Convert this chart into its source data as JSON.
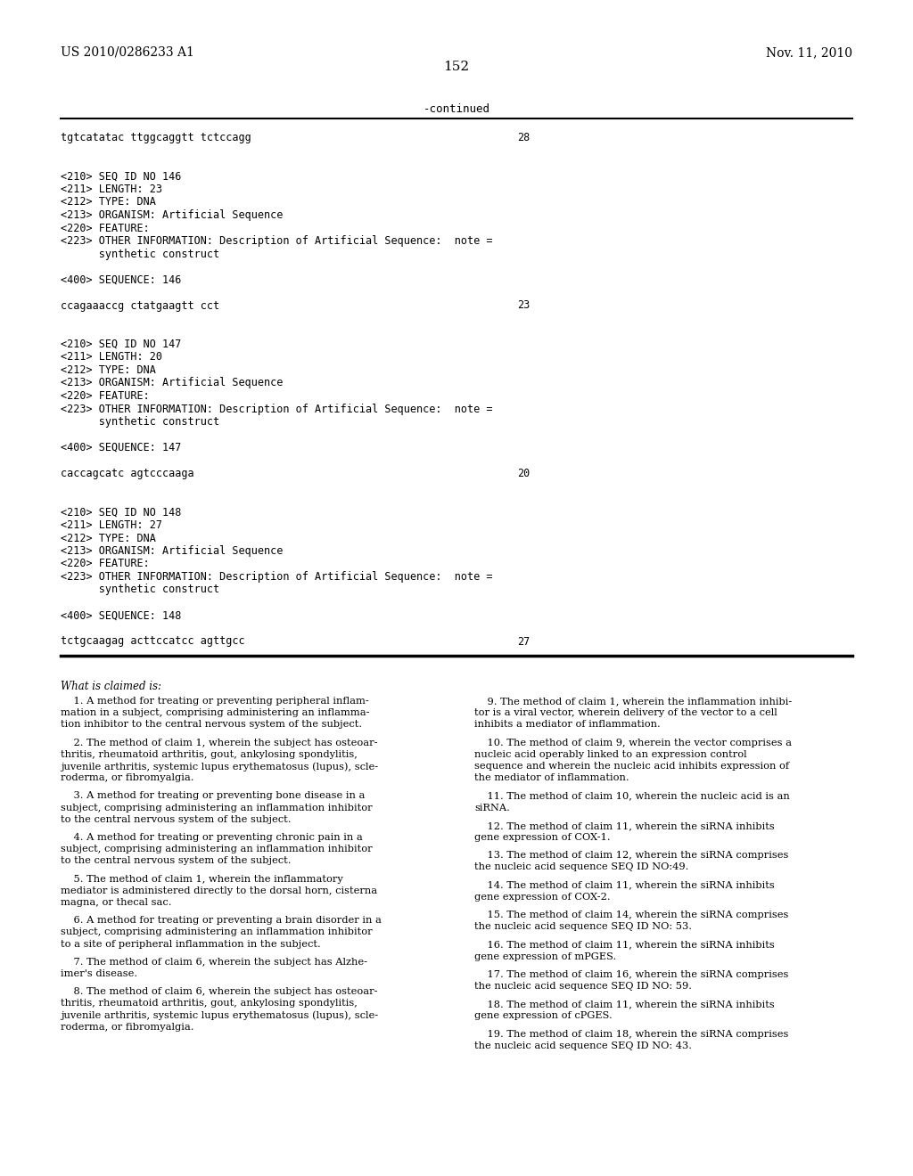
{
  "background_color": "#ffffff",
  "header_left": "US 2010/0286233 A1",
  "header_right": "Nov. 11, 2010",
  "page_number": "152",
  "continued_label": "-continued",
  "monospace_block": [
    {
      "text": "tgtcatatac ttggcaggtt tctccagg",
      "right_num": "28"
    },
    {
      "text": ""
    },
    {
      "text": ""
    },
    {
      "text": "<210> SEQ ID NO 146"
    },
    {
      "text": "<211> LENGTH: 23"
    },
    {
      "text": "<212> TYPE: DNA"
    },
    {
      "text": "<213> ORGANISM: Artificial Sequence"
    },
    {
      "text": "<220> FEATURE:"
    },
    {
      "text": "<223> OTHER INFORMATION: Description of Artificial Sequence:  note ="
    },
    {
      "text": "      synthetic construct"
    },
    {
      "text": ""
    },
    {
      "text": "<400> SEQUENCE: 146"
    },
    {
      "text": ""
    },
    {
      "text": "ccagaaaccg ctatgaagtt cct",
      "right_num": "23"
    },
    {
      "text": ""
    },
    {
      "text": ""
    },
    {
      "text": "<210> SEQ ID NO 147"
    },
    {
      "text": "<211> LENGTH: 20"
    },
    {
      "text": "<212> TYPE: DNA"
    },
    {
      "text": "<213> ORGANISM: Artificial Sequence"
    },
    {
      "text": "<220> FEATURE:"
    },
    {
      "text": "<223> OTHER INFORMATION: Description of Artificial Sequence:  note ="
    },
    {
      "text": "      synthetic construct"
    },
    {
      "text": ""
    },
    {
      "text": "<400> SEQUENCE: 147"
    },
    {
      "text": ""
    },
    {
      "text": "caccagcatc agtcccaaga",
      "right_num": "20"
    },
    {
      "text": ""
    },
    {
      "text": ""
    },
    {
      "text": "<210> SEQ ID NO 148"
    },
    {
      "text": "<211> LENGTH: 27"
    },
    {
      "text": "<212> TYPE: DNA"
    },
    {
      "text": "<213> ORGANISM: Artificial Sequence"
    },
    {
      "text": "<220> FEATURE:"
    },
    {
      "text": "<223> OTHER INFORMATION: Description of Artificial Sequence:  note ="
    },
    {
      "text": "      synthetic construct"
    },
    {
      "text": ""
    },
    {
      "text": "<400> SEQUENCE: 148"
    },
    {
      "text": ""
    },
    {
      "text": "tctgcaagag acttccatcc agttgcc",
      "right_num": "27"
    }
  ],
  "col1_claims": [
    {
      "indent": "    1. ",
      "lines": [
        "A method for treating or preventing peripheral inflam-",
        "mation in a subject, comprising administering an inflamma-",
        "tion inhibitor to the central nervous system of the subject."
      ]
    },
    {
      "indent": "    2. ",
      "lines": [
        "The method of claim 1, wherein the subject has osteoar-",
        "thritis, rheumatoid arthritis, gout, ankylosing spondylitis,",
        "juvenile arthritis, systemic lupus erythematosus (lupus), scle-",
        "roderma, or fibromyalgia."
      ]
    },
    {
      "indent": "    3. ",
      "lines": [
        "A method for treating or preventing bone disease in a",
        "subject, comprising administering an inflammation inhibitor",
        "to the central nervous system of the subject."
      ]
    },
    {
      "indent": "    4. ",
      "lines": [
        "A method for treating or preventing chronic pain in a",
        "subject, comprising administering an inflammation inhibitor",
        "to the central nervous system of the subject."
      ]
    },
    {
      "indent": "    5. ",
      "lines": [
        "The method of claim 1, wherein the inflammatory",
        "mediator is administered directly to the dorsal horn, cisterna",
        "magna, or thecal sac."
      ]
    },
    {
      "indent": "    6. ",
      "lines": [
        "A method for treating or preventing a brain disorder in a",
        "subject, comprising administering an inflammation inhibitor",
        "to a site of peripheral inflammation in the subject."
      ]
    },
    {
      "indent": "    7. ",
      "lines": [
        "The method of claim 6, wherein the subject has Alzhe-",
        "imer's disease."
      ]
    },
    {
      "indent": "    8. ",
      "lines": [
        "The method of claim 6, wherein the subject has osteoar-",
        "thritis, rheumatoid arthritis, gout, ankylosing spondylitis,",
        "juvenile arthritis, systemic lupus erythematosus (lupus), scle-",
        "roderma, or fibromyalgia."
      ]
    }
  ],
  "col2_claims": [
    {
      "indent": "    9. ",
      "lines": [
        "The method of claim 1, wherein the inflammation inhibi-",
        "tor is a viral vector, wherein delivery of the vector to a cell",
        "inhibits a mediator of inflammation."
      ]
    },
    {
      "indent": "    10. ",
      "lines": [
        "The method of claim 9, wherein the vector comprises a",
        "nucleic acid operably linked to an expression control",
        "sequence and wherein the nucleic acid inhibits expression of",
        "the mediator of inflammation."
      ]
    },
    {
      "indent": "    11. ",
      "lines": [
        "The method of claim 10, wherein the nucleic acid is an",
        "siRNA."
      ]
    },
    {
      "indent": "    12. ",
      "lines": [
        "The method of claim 11, wherein the siRNA inhibits",
        "gene expression of COX-1."
      ]
    },
    {
      "indent": "    13. ",
      "lines": [
        "The method of claim 12, wherein the siRNA comprises",
        "the nucleic acid sequence SEQ ID NO:49."
      ]
    },
    {
      "indent": "    14. ",
      "lines": [
        "The method of claim 11, wherein the siRNA inhibits",
        "gene expression of COX-2."
      ]
    },
    {
      "indent": "    15. ",
      "lines": [
        "The method of claim 14, wherein the siRNA comprises",
        "the nucleic acid sequence SEQ ID NO: 53."
      ]
    },
    {
      "indent": "    16. ",
      "lines": [
        "The method of claim 11, wherein the siRNA inhibits",
        "gene expression of mPGES."
      ]
    },
    {
      "indent": "    17. ",
      "lines": [
        "The method of claim 16, wherein the siRNA comprises",
        "the nucleic acid sequence SEQ ID NO: 59."
      ]
    },
    {
      "indent": "    18. ",
      "lines": [
        "The method of claim 11, wherein the siRNA inhibits",
        "gene expression of cPGES."
      ]
    },
    {
      "indent": "    19. ",
      "lines": [
        "The method of claim 18, wherein the siRNA comprises",
        "the nucleic acid sequence SEQ ID NO: 43."
      ]
    }
  ]
}
